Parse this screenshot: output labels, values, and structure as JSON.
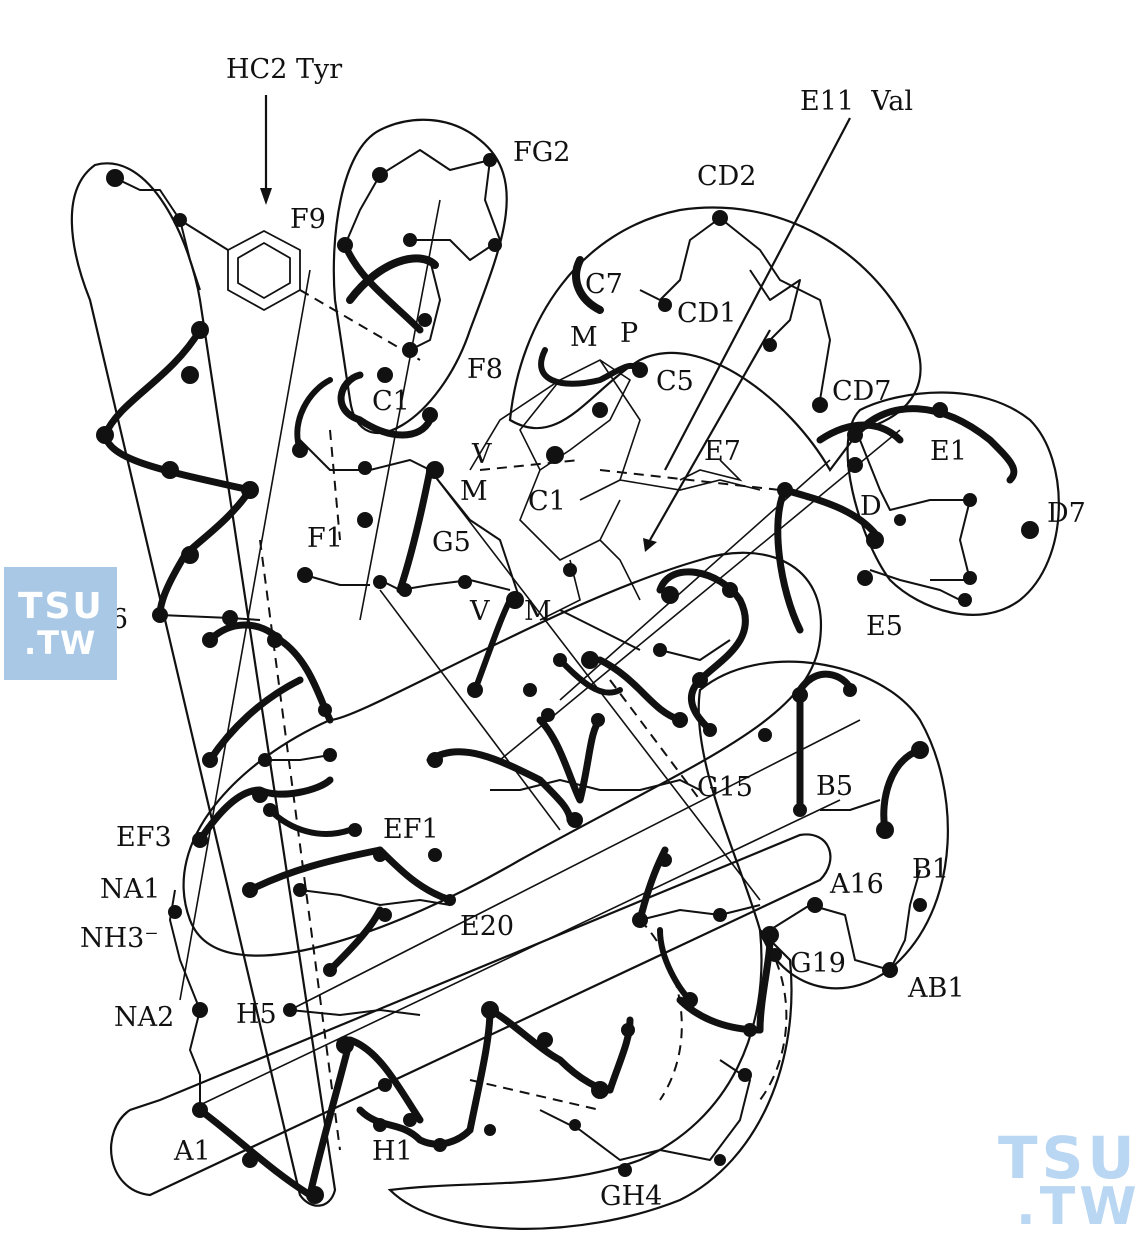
{
  "labels": {
    "hc2": "HC2 Tyr",
    "e11": "E11  Val",
    "fg2": "FG2",
    "cd2": "CD2",
    "f9": "F9",
    "c7": "C7",
    "cd1": "CD1",
    "m1": "M",
    "p": "P",
    "f8": "F8",
    "c5": "C5",
    "c1a": "C1",
    "cd7": "CD7",
    "v1": "V",
    "e7": "E7",
    "e1": "E1",
    "m2": "M",
    "c1b": "C1",
    "d": "D",
    "d7": "D7",
    "f1": "F1",
    "g5": "G5",
    "h16": "H16",
    "v2": "V",
    "m3": "M",
    "e5": "E5",
    "g15": "G15",
    "b5": "B5",
    "ef3": "EF3",
    "ef1": "EF1",
    "na1": "NA1",
    "a16": "A16",
    "b1": "B1",
    "nh3": "NH3⁻",
    "e20": "E20",
    "g19": "G19",
    "ab1": "AB1",
    "na2": "NA2",
    "h5": "H5",
    "a1": "A1",
    "h1": "H1",
    "gh4": "GH4"
  },
  "watermark": {
    "line1": "TSU",
    "line2": ".TW"
  }
}
